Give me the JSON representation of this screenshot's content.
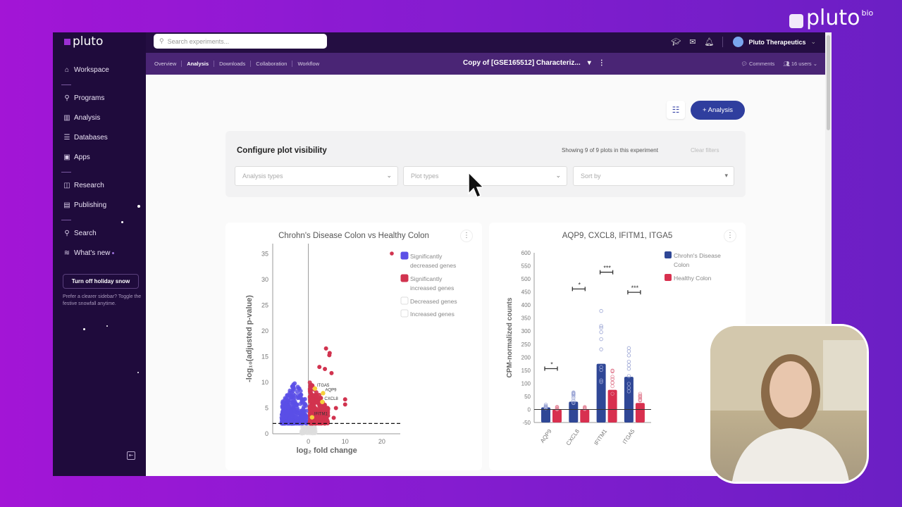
{
  "brand": {
    "name": "pluto",
    "suffix": "bio"
  },
  "sidebar": {
    "logo": "pluto",
    "items": [
      {
        "label": "Workspace",
        "icon": "home-icon"
      },
      {
        "label": "Programs",
        "icon": "programs-icon"
      },
      {
        "label": "Analysis",
        "icon": "bar-chart-icon"
      },
      {
        "label": "Databases",
        "icon": "database-icon"
      },
      {
        "label": "Apps",
        "icon": "terminal-icon"
      },
      {
        "label": "Research",
        "icon": "book-icon"
      },
      {
        "label": "Publishing",
        "icon": "document-icon"
      },
      {
        "label": "Search",
        "icon": "search-icon"
      },
      {
        "label": "What's new",
        "icon": "rss-icon"
      }
    ],
    "snow_button": "Turn off holiday snow",
    "snow_note": "Prefer a clearer sidebar? Toggle the festive snowfall anytime."
  },
  "topbar": {
    "search_placeholder": "Search experiments...",
    "user": "Pluto Therapeutics"
  },
  "subnav": {
    "tabs": [
      "Overview",
      "Analysis",
      "Downloads",
      "Collaboration",
      "Workflow"
    ],
    "active": "Analysis",
    "experiment_title": "Copy of [GSE165512] Characteriz...",
    "comments": "Comments",
    "users": "16 users"
  },
  "toolbar": {
    "add_analysis": "+ Analysis"
  },
  "config": {
    "title": "Configure plot visibility",
    "count": "Showing 9 of 9 plots in this experiment",
    "clear": "Clear filters",
    "analysis_types": "Analysis types",
    "plot_types": "Plot types",
    "sort_by": "Sort by"
  },
  "colors": {
    "accent": "#2f3e9e",
    "decreased": "#5b4fe6",
    "increased": "#d1334f",
    "highlight": "#f5cf3c",
    "cd": "#2f4796",
    "healthy": "#d8304f"
  },
  "chart_data": [
    {
      "type": "scatter",
      "title": "Chrohn's Disease Colon vs Healthy Colon",
      "xlabel": "log₂ fold change",
      "ylabel": "-log₁₀(adjusted p-value)",
      "xlim": [
        -9.7,
        25
      ],
      "ylim": [
        0,
        37
      ],
      "xticks": [
        0,
        10,
        20
      ],
      "yticks": [
        0,
        5,
        10,
        15,
        20,
        25,
        30,
        35
      ],
      "threshold_y": 2,
      "legend": [
        "Significantly decreased genes",
        "Significantly increased genes",
        "Decreased genes",
        "Increased genes"
      ],
      "legend_placement": "top-right",
      "highlighted": [
        {
          "gene": "ITGA5",
          "x": 1.8,
          "y": 8.8
        },
        {
          "gene": "AQP9",
          "x": 4,
          "y": 7.9
        },
        {
          "gene": "CXCL8",
          "x": 3.8,
          "y": 6.2
        },
        {
          "gene": "IFITM1",
          "x": 1,
          "y": 3.2
        }
      ]
    },
    {
      "type": "bar",
      "title": "AQP9, CXCL8, IFITM1, ITGA5",
      "ylabel": "CPM-normalized counts",
      "ylim": [
        -50,
        600
      ],
      "yticks": [
        -50,
        0,
        50,
        100,
        150,
        200,
        250,
        300,
        350,
        400,
        450,
        500,
        550,
        600
      ],
      "categories": [
        "AQP9",
        "CXCL8",
        "IFITM1",
        "ITGA5"
      ],
      "series": [
        {
          "name": "Chrohn's Disease Colon",
          "values": [
            8,
            30,
            175,
            125
          ]
        },
        {
          "name": "Healthy Colon",
          "values": [
            0,
            0,
            75,
            25
          ]
        }
      ],
      "significance": [
        "*",
        "*",
        "***",
        "***"
      ],
      "legend_placement": "top-right"
    }
  ]
}
